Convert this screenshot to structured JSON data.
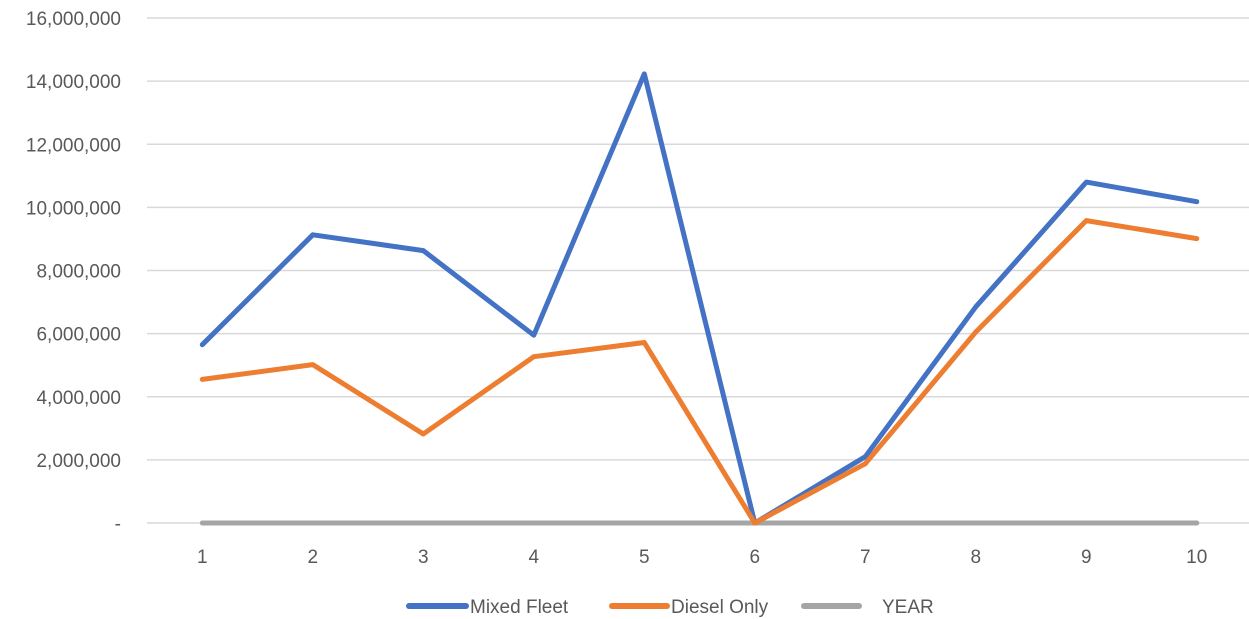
{
  "chart_data": {
    "type": "line",
    "x": [
      1,
      2,
      3,
      4,
      5,
      6,
      7,
      8,
      9,
      10
    ],
    "x_tick_labels": [
      "1",
      "2",
      "3",
      "4",
      "5",
      "6",
      "7",
      "8",
      "9",
      "10"
    ],
    "y_tick_labels": [
      "-",
      "2,000,000",
      "4,000,000",
      "6,000,000",
      "8,000,000",
      "10,000,000",
      "12,000,000",
      "14,000,000",
      "16,000,000"
    ],
    "ylim": [
      0,
      16000000
    ],
    "yticks": [
      0,
      2000000,
      4000000,
      6000000,
      8000000,
      10000000,
      12000000,
      14000000,
      16000000
    ],
    "grid": true,
    "legend_position": "bottom",
    "series": [
      {
        "name": "Mixed Fleet",
        "color": "#4472C4",
        "values": [
          5650000,
          9130000,
          8630000,
          5950000,
          14230000,
          0,
          2100000,
          6850000,
          10800000,
          10180000
        ]
      },
      {
        "name": "Diesel Only",
        "color": "#ED7D31",
        "values": [
          4550000,
          5020000,
          2820000,
          5270000,
          5720000,
          0,
          1880000,
          6050000,
          9580000,
          9010000
        ]
      },
      {
        "name": "YEAR",
        "color": "#A5A5A5",
        "values": [
          1,
          2,
          3,
          4,
          5,
          6,
          7,
          8,
          9,
          10
        ]
      }
    ]
  }
}
